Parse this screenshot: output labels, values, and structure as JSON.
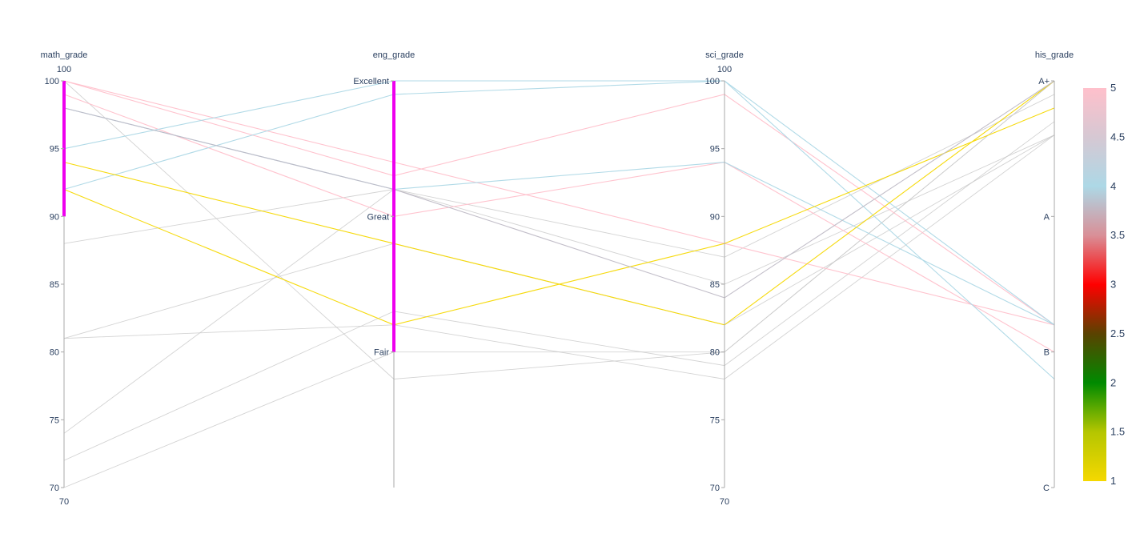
{
  "chart_data": {
    "type": "parallel_coordinates",
    "dimensions": [
      {
        "name": "math_grade",
        "range": [
          70,
          100
        ],
        "tickvals": [
          70,
          75,
          80,
          85,
          90,
          95,
          100
        ],
        "ticktext": [
          "70",
          "75",
          "80",
          "85",
          "90",
          "95",
          "100"
        ],
        "range_top_label": "100",
        "range_bottom_label": "70",
        "constraint": [
          90,
          100
        ]
      },
      {
        "name": "eng_grade",
        "range": [
          70,
          100
        ],
        "tickvals": [
          80,
          90,
          100
        ],
        "ticktext": [
          "Fair",
          "Great",
          "Excellent"
        ],
        "range_top_label": "",
        "range_bottom_label": "",
        "constraint": [
          80,
          100
        ]
      },
      {
        "name": "sci_grade",
        "range": [
          70,
          100
        ],
        "tickvals": [
          70,
          75,
          80,
          85,
          90,
          95,
          100
        ],
        "ticktext": [
          "70",
          "75",
          "80",
          "85",
          "90",
          "95",
          "100"
        ],
        "range_top_label": "100",
        "range_bottom_label": "70",
        "constraint": null
      },
      {
        "name": "his_grade",
        "range": [
          70,
          100
        ],
        "tickvals": [
          70,
          80,
          90,
          100
        ],
        "ticktext": [
          "C",
          "B",
          "A",
          "A+"
        ],
        "range_top_label": "",
        "range_bottom_label": "",
        "constraint": null
      }
    ],
    "lines": [
      {
        "values": [
          100,
          93,
          99,
          82
        ],
        "color": 5
      },
      {
        "values": [
          99,
          90,
          94,
          80
        ],
        "color": 5
      },
      {
        "values": [
          100,
          94,
          88,
          82
        ],
        "color": 5
      },
      {
        "values": [
          98,
          92,
          94,
          82
        ],
        "color": 4
      },
      {
        "values": [
          95,
          100,
          100,
          82
        ],
        "color": 4
      },
      {
        "values": [
          92,
          99,
          100,
          78
        ],
        "color": 4
      },
      {
        "values": [
          94,
          88,
          82,
          100
        ],
        "color": 1
      },
      {
        "values": [
          92,
          82,
          88,
          98
        ],
        "color": 1
      },
      {
        "values": [
          100,
          78,
          80,
          100
        ],
        "color": 3.8
      },
      {
        "values": [
          98,
          92,
          84,
          100
        ],
        "color": 3.8
      },
      {
        "values": [
          88,
          92,
          87,
          99
        ],
        "color": 3.8
      },
      {
        "values": [
          81,
          88,
          82,
          96
        ],
        "color": 3.8
      },
      {
        "values": [
          81,
          82,
          78,
          96
        ],
        "color": 3.8
      },
      {
        "values": [
          74,
          92,
          85,
          96
        ],
        "color": 3.8
      },
      {
        "values": [
          72,
          83,
          79,
          97
        ],
        "color": 3.8
      },
      {
        "values": [
          70,
          80,
          80,
          100
        ],
        "color": 3.8
      }
    ],
    "colorscale": [
      [
        0,
        "#f5d800"
      ],
      [
        0.125,
        "#b5c600"
      ],
      [
        0.25,
        "#008a00"
      ],
      [
        0.375,
        "#5a4200"
      ],
      [
        0.5,
        "#ff0000"
      ],
      [
        0.625,
        "#d98f97"
      ],
      [
        0.75,
        "#add8e6"
      ],
      [
        0.875,
        "#d6c8d3"
      ],
      [
        1,
        "#ffc0cb"
      ]
    ],
    "color_range": [
      1,
      5
    ],
    "colorbar_ticks": [
      "1",
      "1.5",
      "2",
      "2.5",
      "3",
      "3.5",
      "4",
      "4.5",
      "5"
    ],
    "constraint_color": "#ee00ee",
    "filtered_line_color": "#c8c8c8"
  }
}
